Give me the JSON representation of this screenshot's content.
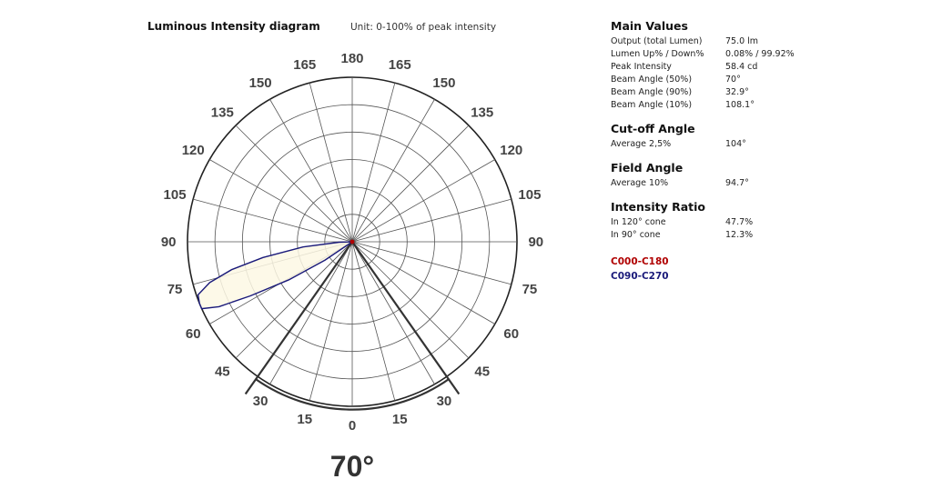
{
  "chart_data": {
    "type": "polar",
    "title": "Luminous Intensity diagram",
    "unit_note": "Unit: 0-100% of peak intensity",
    "angle_ticks": {
      "left": [
        "180",
        "165",
        "150",
        "135",
        "120",
        "105",
        "90",
        "75",
        "60",
        "45",
        "30",
        "15",
        "0"
      ],
      "right": [
        "165",
        "150",
        "135",
        "120",
        "105",
        "90",
        "75",
        "60",
        "45",
        "30",
        "15"
      ]
    },
    "radial_range": [
      0,
      100
    ],
    "ring_count": 6,
    "spoke_step_deg": 15,
    "beam_angle_deg": 70,
    "beam_label": "70°",
    "series": [
      {
        "name": "C090-C270",
        "color": "#1a1a7a",
        "points": [
          {
            "angle": 0,
            "r": 0
          },
          {
            "angle": 56,
            "r": 20
          },
          {
            "angle": 59,
            "r": 45
          },
          {
            "angle": 62,
            "r": 70
          },
          {
            "angle": 64,
            "r": 90
          },
          {
            "angle": 66,
            "r": 100
          },
          {
            "angle": 68,
            "r": 100
          },
          {
            "angle": 71,
            "r": 99
          },
          {
            "angle": 74,
            "r": 90
          },
          {
            "angle": 77,
            "r": 75
          },
          {
            "angle": 80,
            "r": 55
          },
          {
            "angle": 84,
            "r": 30
          },
          {
            "angle": 88,
            "r": 8
          },
          {
            "angle": 90,
            "r": 0
          }
        ]
      }
    ]
  },
  "main_values": {
    "title": "Main Values",
    "rows": [
      {
        "label": "Output (total Lumen)",
        "value": "75.0 lm"
      },
      {
        "label": "Lumen Up% / Down%",
        "value": "0.08% / 99.92%"
      },
      {
        "label": "Peak Intensity",
        "value": "58.4 cd"
      },
      {
        "label": "Beam Angle (50%)",
        "value": "70°"
      },
      {
        "label": "Beam Angle (90%)",
        "value": "32.9°"
      },
      {
        "label": "Beam Angle (10%)",
        "value": "108.1°"
      }
    ]
  },
  "cutoff": {
    "title": "Cut-off Angle",
    "rows": [
      {
        "label": "Average 2,5%",
        "value": "104°"
      }
    ]
  },
  "field": {
    "title": "Field Angle",
    "rows": [
      {
        "label": "Average 10%",
        "value": "94.7°"
      }
    ]
  },
  "ratio": {
    "title": "Intensity Ratio",
    "rows": [
      {
        "label": "In 120° cone",
        "value": "47.7%"
      },
      {
        "label": "In 90° cone",
        "value": "12.3%"
      }
    ]
  },
  "legend": [
    {
      "name": "C000-C180",
      "color": "#b00000"
    },
    {
      "name": "C090-C270",
      "color": "#1a1a7a"
    }
  ],
  "colors": {
    "grid": "#555555",
    "outer_circle": "#222222",
    "series_fill": "#fdf8e4",
    "center_marker": "#b00000"
  }
}
